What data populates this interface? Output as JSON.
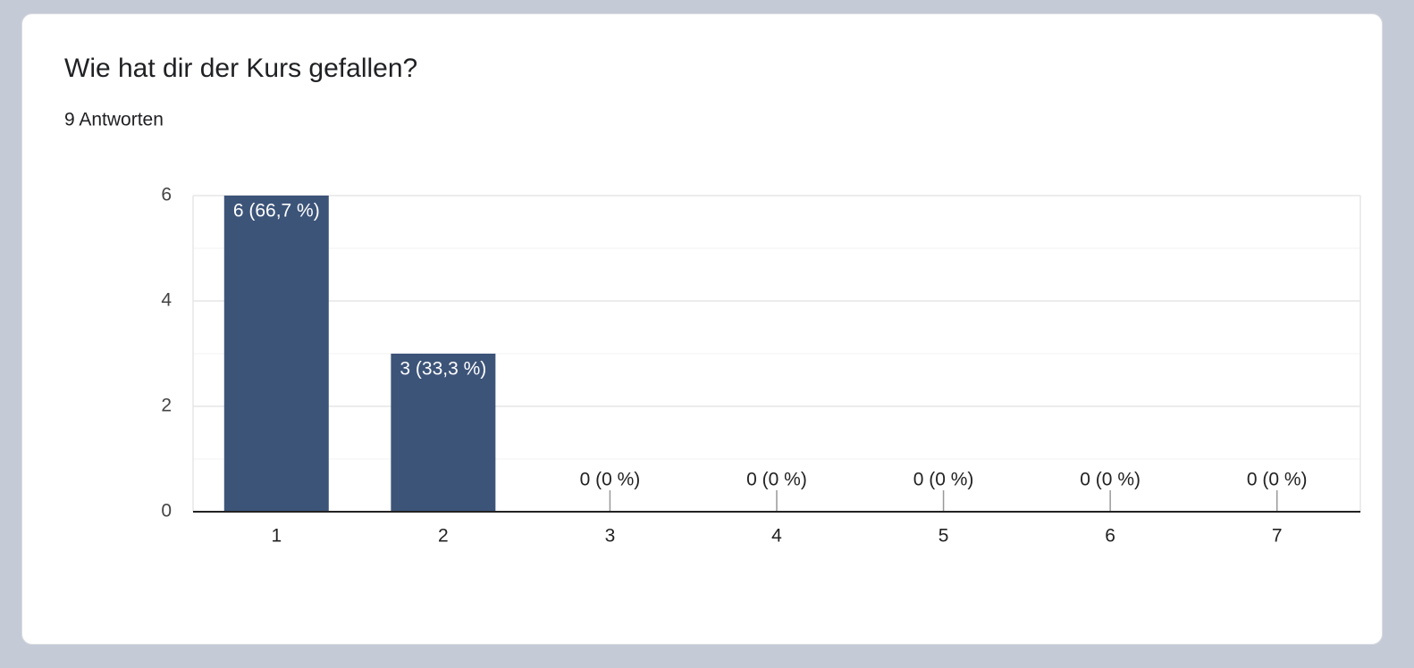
{
  "chart_data": {
    "type": "bar",
    "title": "Wie hat dir der Kurs gefallen?",
    "subtitle": "9 Antworten",
    "categories": [
      "1",
      "2",
      "3",
      "4",
      "5",
      "6",
      "7"
    ],
    "values": [
      6,
      3,
      0,
      0,
      0,
      0,
      0
    ],
    "value_labels": [
      "6 (66,7 %)",
      "3 (33,3 %)",
      "0 (0 %)",
      "0 (0 %)",
      "0 (0 %)",
      "0 (0 %)",
      "0 (0 %)"
    ],
    "color": "#3d5479",
    "ylim": [
      0,
      6
    ],
    "yticks": [
      0,
      2,
      4,
      6
    ],
    "minor_yticks": [
      1,
      3,
      5
    ],
    "grid": true
  }
}
